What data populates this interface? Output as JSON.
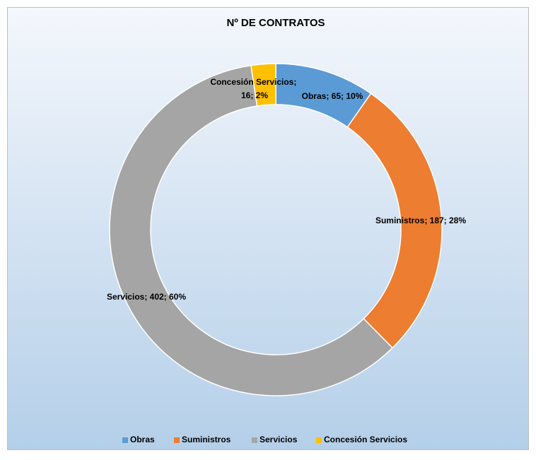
{
  "chart_data": {
    "type": "donut",
    "title": "Nº DE CONTRATOS",
    "categories": [
      "Obras",
      "Suministros",
      "Servicios",
      "Concesión Servicios"
    ],
    "values": [
      65,
      187,
      402,
      16
    ],
    "value_labels": [
      "Obras; 65; 10%",
      "Suministros; 187; 28%",
      "Servicios; 402; 60%",
      "Concesión Servicios; 16; 2%"
    ],
    "colors": [
      "#5b9bd5",
      "#ed7d31",
      "#a5a5a5",
      "#ffc000"
    ],
    "legend": "bottom"
  }
}
